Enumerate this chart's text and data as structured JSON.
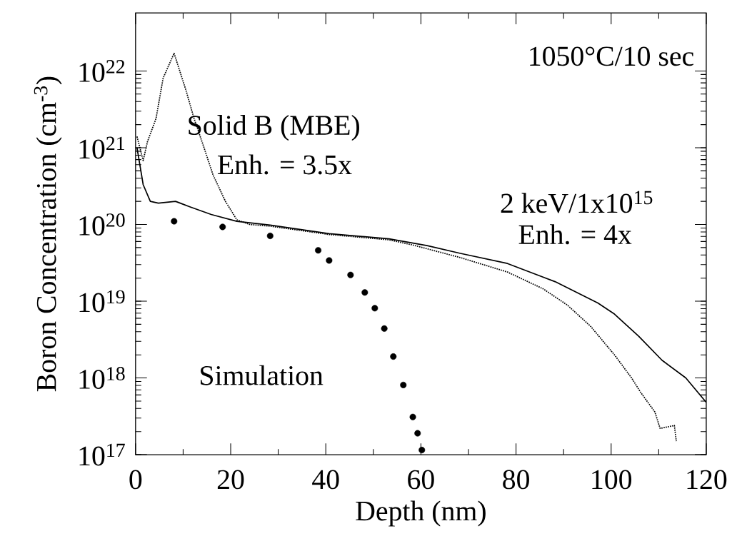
{
  "chart_data": {
    "type": "line",
    "xlabel": "Depth (nm)",
    "ylabel": "Boron Concentration (cm$^{-3}$)",
    "annotations": [
      "1050°C/10 sec",
      "Solid B (MBE)",
      "Enh. = 3.5x",
      "2 keV/1x10$^{15}$",
      "Enh. = 4x",
      "Simulation"
    ],
    "log": "y",
    "grid": false,
    "xlim": [
      0,
      120
    ],
    "xticks": [
      0,
      20,
      40,
      60,
      80,
      100,
      120
    ],
    "ylim": [
      1e+17,
      5.7e+22
    ],
    "yticks": [
      {
        "value": 1e+17,
        "label": "10$^{17}$"
      },
      {
        "value": 1e+18,
        "label": "10$^{18}$"
      },
      {
        "value": 1e+19,
        "label": "10$^{19}$"
      },
      {
        "value": 1e+20,
        "label": "10$^{20}$"
      },
      {
        "value": 1e+21,
        "label": "10$^{21}$"
      },
      {
        "value": 1e+22,
        "label": "10$^{22}$"
      }
    ],
    "series": [
      {
        "line_style": "dotted",
        "color": "#000000",
        "x": [
          0.3,
          1.6,
          2.5,
          4.3,
          5.8,
          8.1,
          10.6,
          12.3,
          14.4,
          16.3,
          18.9,
          21.3,
          24,
          28.3,
          40.7,
          53.3,
          58.3,
          68.3,
          78.2,
          85.7,
          90.8,
          95.7,
          100.7,
          104.3,
          106.2,
          109.2,
          110.3,
          113.3,
          113.7
        ],
        "values": [
          1.4e+21,
          6.8e+20,
          1.2e+21,
          2.4e+21,
          8.1e+21,
          1.7e+22,
          5.6e+21,
          2.4e+21,
          1e+21,
          4.4e+20,
          2e+20,
          1.15e+20,
          1e+20,
          9.5e+19,
          7.4e+19,
          6.3e+19,
          5.4e+19,
          3.7e+19,
          2.4e+19,
          1.45e+19,
          8.9e+18,
          4.7e+18,
          2e+18,
          1e+18,
          6.5e+17,
          3.6e+17,
          2.2e+17,
          2.4e+17,
          1.5e+17
        ]
      },
      {
        "line_style": "solid",
        "color": "#000000",
        "x": [
          0.3,
          1.6,
          3.1,
          4.8,
          8.4,
          11.4,
          15.9,
          21.3,
          28.3,
          40.7,
          53.3,
          61.3,
          68.3,
          78.2,
          88.2,
          97.2,
          100.7,
          105.8,
          110.7,
          115.7,
          120
        ],
        "values": [
          1e+21,
          3.3e+20,
          2e+20,
          1.9e+20,
          2e+20,
          1.7e+20,
          1.35e+20,
          1.1e+20,
          9.8e+19,
          7.6e+19,
          6.5e+19,
          5.3e+19,
          4.2e+19,
          3.1e+19,
          1.8e+19,
          9.5e+18,
          6.8e+18,
          3.5e+18,
          1.7e+18,
          1e+18,
          4.8e+17
        ]
      },
      {
        "type": "scatter",
        "marker": "circle",
        "color": "#000000",
        "x": [
          8.1,
          18.3,
          28.3,
          38.4,
          40.7,
          45.2,
          48.2,
          50.3,
          52.3,
          54.2,
          56.3,
          58.3,
          59.3,
          60.2
        ],
        "values": [
          1.1e+20,
          9.3e+19,
          7.1e+19,
          4.6e+19,
          3.4e+19,
          2.2e+19,
          1.3e+19,
          8.1e+18,
          4.4e+18,
          1.9e+18,
          8.1e+17,
          3.1e+17,
          1.9e+17,
          1.15e+17
        ]
      }
    ]
  }
}
